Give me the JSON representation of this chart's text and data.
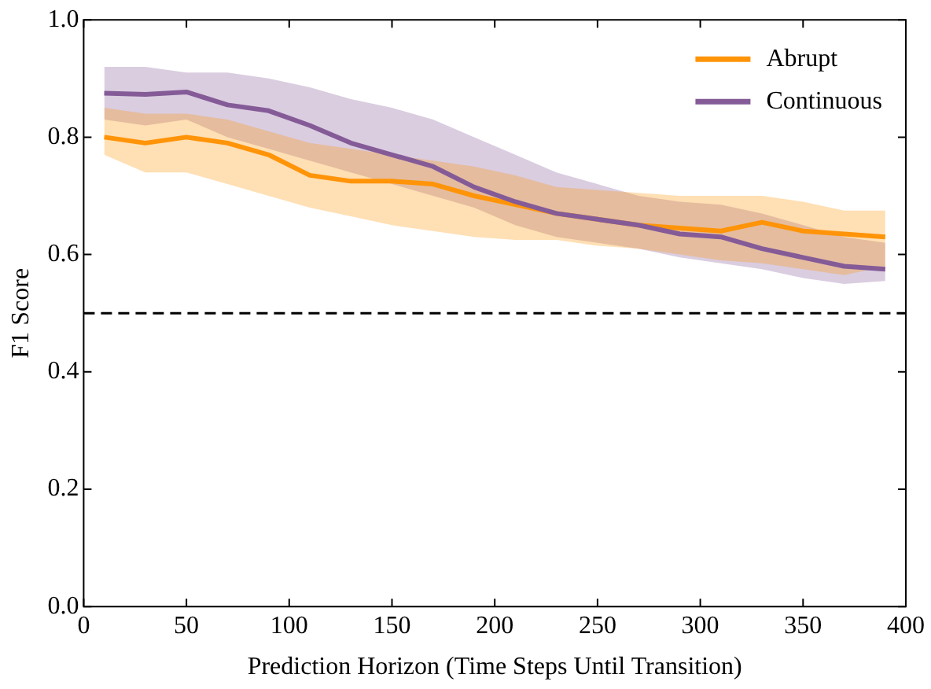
{
  "chart_data": {
    "type": "line",
    "xlabel": "Prediction Horizon (Time Steps Until Transition)",
    "ylabel": "F1 Score",
    "x": [
      10,
      30,
      50,
      70,
      90,
      110,
      130,
      150,
      170,
      190,
      210,
      230,
      250,
      270,
      290,
      310,
      330,
      350,
      370,
      390
    ],
    "series": [
      {
        "name": "Abrupt",
        "color": "#ff9408",
        "values": [
          0.8,
          0.79,
          0.8,
          0.79,
          0.77,
          0.735,
          0.725,
          0.725,
          0.72,
          0.7,
          0.685,
          0.67,
          0.66,
          0.65,
          0.645,
          0.64,
          0.655,
          0.64,
          0.635,
          0.63
        ],
        "lower": [
          0.77,
          0.74,
          0.74,
          0.72,
          0.7,
          0.68,
          0.665,
          0.65,
          0.64,
          0.63,
          0.625,
          0.625,
          0.615,
          0.61,
          0.6,
          0.59,
          0.585,
          0.575,
          0.565,
          0.58
        ],
        "upper": [
          0.85,
          0.84,
          0.84,
          0.83,
          0.81,
          0.79,
          0.78,
          0.77,
          0.76,
          0.75,
          0.735,
          0.715,
          0.71,
          0.705,
          0.7,
          0.7,
          0.7,
          0.69,
          0.675,
          0.675
        ]
      },
      {
        "name": "Continuous",
        "color": "#845b97",
        "values": [
          0.875,
          0.873,
          0.877,
          0.855,
          0.845,
          0.82,
          0.79,
          0.77,
          0.75,
          0.715,
          0.69,
          0.67,
          0.66,
          0.65,
          0.635,
          0.63,
          0.61,
          0.595,
          0.58,
          0.575
        ],
        "lower": [
          0.83,
          0.82,
          0.83,
          0.8,
          0.78,
          0.76,
          0.74,
          0.72,
          0.7,
          0.68,
          0.65,
          0.63,
          0.62,
          0.61,
          0.595,
          0.585,
          0.575,
          0.56,
          0.55,
          0.555
        ],
        "upper": [
          0.92,
          0.92,
          0.91,
          0.91,
          0.9,
          0.885,
          0.865,
          0.85,
          0.83,
          0.8,
          0.77,
          0.74,
          0.72,
          0.7,
          0.69,
          0.685,
          0.67,
          0.65,
          0.63,
          0.62
        ]
      }
    ],
    "xlim": [
      0,
      400
    ],
    "xticks": [
      0,
      50,
      100,
      150,
      200,
      250,
      300,
      350,
      400
    ],
    "ylim": [
      0,
      1
    ],
    "yticks": [
      {
        "value": 0,
        "label": "0.0"
      },
      {
        "value": 0.2,
        "label": "0.2"
      },
      {
        "value": 0.4,
        "label": "0.4"
      },
      {
        "value": 0.6,
        "label": "0.6"
      },
      {
        "value": 0.8,
        "label": "0.8"
      },
      {
        "value": 1,
        "label": "1.0"
      }
    ],
    "ref_lines": [
      {
        "axis": "y",
        "value": 0.5,
        "color": "#000000",
        "line_style": "dashed"
      }
    ],
    "legend": "top right",
    "grid": false,
    "marker": "none",
    "line_style": "solid"
  }
}
